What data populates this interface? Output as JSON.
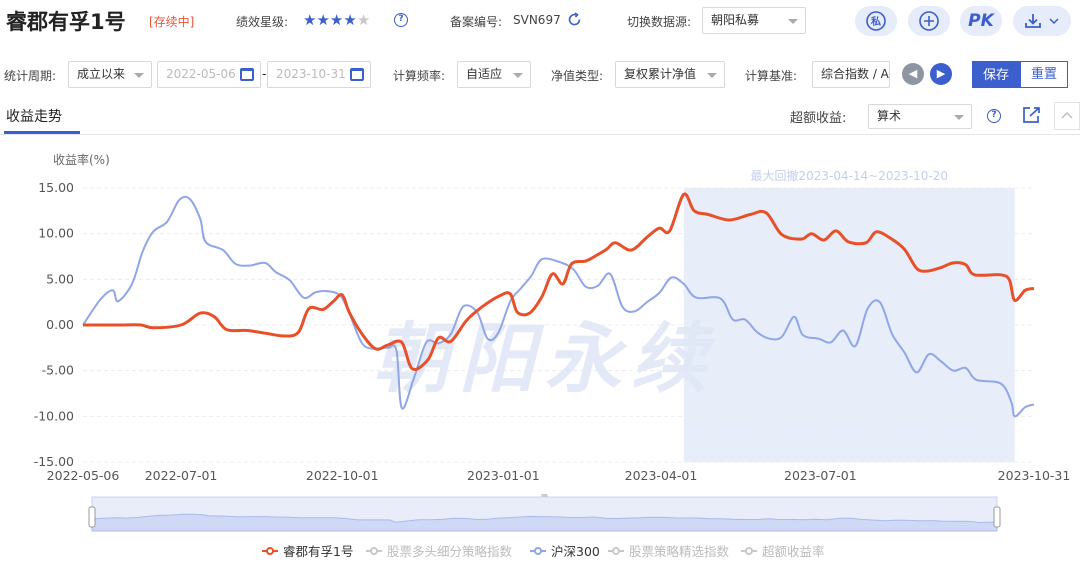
{
  "header": {
    "fund_name": "睿郡有孚1号",
    "status": "[存续中]",
    "rating_label": "绩效星级:",
    "rating_stars": 4,
    "rating_max": 5,
    "record_label": "备案编号:",
    "record_no": "SVN697",
    "source_label": "切换数据源:",
    "source_value": "朝阳私募",
    "action_private": "私",
    "action_add": "+",
    "action_pk": "PK"
  },
  "filters": {
    "period_label": "统计周期:",
    "period_value": "成立以来",
    "date_start_placeholder": "2022-05-06",
    "date_end_placeholder": "2023-10-31",
    "date_sep": "-",
    "freq_label": "计算频率:",
    "freq_value": "自适应",
    "nav_type_label": "净值类型:",
    "nav_type_value": "复权累计净值",
    "benchmark_label": "计算基准:",
    "benchmark_value": "综合指数 / A",
    "save_label": "保存",
    "reset_label": "重置"
  },
  "tabs": {
    "active": "收益走势",
    "excess_label": "超额收益:",
    "excess_value": "算术"
  },
  "colors": {
    "accent": "#3b5fcc",
    "fund_series": "#e8502a",
    "index_series": "#8fa6e8",
    "drawdown_band": "#e8eef9",
    "watermark": "#dfe6f6"
  },
  "chart_data": {
    "type": "line",
    "ylabel": "收益率(%)",
    "ylim": [
      -15,
      15
    ],
    "yticks": [
      "15.00",
      "10.00",
      "5.00",
      "0.00",
      "-5.00",
      "-10.00",
      "-15.00"
    ],
    "xticks": [
      "2022-05-06",
      "2022-07-01",
      "2022-10-01",
      "2023-01-01",
      "2023-04-01",
      "2023-07-01",
      "2023-10-31"
    ],
    "xlim": [
      "2022-05-06",
      "2023-10-31"
    ],
    "drawdown": {
      "label": "最大回撤2023-04-14~2023-10-20",
      "start": "2023-04-14",
      "end": "2023-10-20"
    },
    "watermark": "朝阳永续",
    "series": [
      {
        "name": "睿郡有孚1号",
        "color": "#e8502a",
        "points": [
          [
            "2022-05-06",
            0.0
          ],
          [
            "2022-05-27",
            0.0
          ],
          [
            "2022-06-08",
            0.0
          ],
          [
            "2022-06-15",
            -0.3
          ],
          [
            "2022-07-01",
            0.0
          ],
          [
            "2022-07-12",
            1.3
          ],
          [
            "2022-07-20",
            0.9
          ],
          [
            "2022-07-27",
            -0.5
          ],
          [
            "2022-08-08",
            -0.6
          ],
          [
            "2022-08-18",
            -0.9
          ],
          [
            "2022-08-29",
            -1.2
          ],
          [
            "2022-09-06",
            -0.8
          ],
          [
            "2022-09-12",
            1.8
          ],
          [
            "2022-09-20",
            1.7
          ],
          [
            "2022-09-26",
            2.6
          ],
          [
            "2022-10-01",
            3.3
          ],
          [
            "2022-10-05",
            1.4
          ],
          [
            "2022-10-12",
            -0.9
          ],
          [
            "2022-10-20",
            -2.6
          ],
          [
            "2022-10-27",
            -2.2
          ],
          [
            "2022-11-04",
            -1.9
          ],
          [
            "2022-11-10",
            -4.8
          ],
          [
            "2022-11-19",
            -3.8
          ],
          [
            "2022-11-25",
            -1.4
          ],
          [
            "2022-12-02",
            -1.8
          ],
          [
            "2022-12-11",
            0.5
          ],
          [
            "2022-12-20",
            2.0
          ],
          [
            "2022-12-30",
            3.2
          ],
          [
            "2023-01-05",
            3.4
          ],
          [
            "2023-01-09",
            1.4
          ],
          [
            "2023-01-16",
            1.3
          ],
          [
            "2023-01-23",
            3.1
          ],
          [
            "2023-01-29",
            5.6
          ],
          [
            "2023-02-04",
            4.5
          ],
          [
            "2023-02-09",
            6.7
          ],
          [
            "2023-02-17",
            7.0
          ],
          [
            "2023-02-23",
            7.6
          ],
          [
            "2023-03-01",
            8.3
          ],
          [
            "2023-03-06",
            9.0
          ],
          [
            "2023-03-15",
            8.2
          ],
          [
            "2023-03-24",
            9.6
          ],
          [
            "2023-03-31",
            10.6
          ],
          [
            "2023-04-06",
            10.3
          ],
          [
            "2023-04-14",
            14.3
          ],
          [
            "2023-04-20",
            12.5
          ],
          [
            "2023-04-28",
            12.1
          ],
          [
            "2023-05-10",
            11.5
          ],
          [
            "2023-05-22",
            12.1
          ],
          [
            "2023-05-31",
            12.3
          ],
          [
            "2023-06-09",
            9.9
          ],
          [
            "2023-06-20",
            9.4
          ],
          [
            "2023-06-26",
            10.0
          ],
          [
            "2023-07-03",
            9.3
          ],
          [
            "2023-07-10",
            10.3
          ],
          [
            "2023-07-17",
            9.1
          ],
          [
            "2023-07-27",
            9.0
          ],
          [
            "2023-08-02",
            10.2
          ],
          [
            "2023-08-10",
            9.5
          ],
          [
            "2023-08-18",
            8.3
          ],
          [
            "2023-08-25",
            6.2
          ],
          [
            "2023-08-31",
            5.9
          ],
          [
            "2023-09-08",
            6.3
          ],
          [
            "2023-09-15",
            6.8
          ],
          [
            "2023-09-22",
            6.6
          ],
          [
            "2023-09-27",
            5.5
          ],
          [
            "2023-10-12",
            5.5
          ],
          [
            "2023-10-17",
            4.9
          ],
          [
            "2023-10-20",
            2.7
          ],
          [
            "2023-10-26",
            3.8
          ],
          [
            "2023-10-31",
            4.0
          ]
        ]
      },
      {
        "name": "沪深300",
        "color": "#8fa6e8",
        "points": [
          [
            "2022-05-06",
            0.0
          ],
          [
            "2022-05-16",
            2.8
          ],
          [
            "2022-05-23",
            3.8
          ],
          [
            "2022-05-26",
            2.6
          ],
          [
            "2022-06-03",
            4.5
          ],
          [
            "2022-06-09",
            8.0
          ],
          [
            "2022-06-15",
            10.2
          ],
          [
            "2022-06-23",
            11.3
          ],
          [
            "2022-06-30",
            13.7
          ],
          [
            "2022-07-06",
            13.8
          ],
          [
            "2022-07-12",
            11.6
          ],
          [
            "2022-07-15",
            9.1
          ],
          [
            "2022-07-25",
            8.2
          ],
          [
            "2022-08-01",
            6.7
          ],
          [
            "2022-08-09",
            6.5
          ],
          [
            "2022-08-18",
            6.8
          ],
          [
            "2022-08-24",
            5.8
          ],
          [
            "2022-09-01",
            4.9
          ],
          [
            "2022-09-09",
            3.0
          ],
          [
            "2022-09-16",
            3.6
          ],
          [
            "2022-09-23",
            3.7
          ],
          [
            "2022-09-30",
            3.2
          ],
          [
            "2022-10-05",
            1.3
          ],
          [
            "2022-10-12",
            -1.9
          ],
          [
            "2022-10-18",
            -2.6
          ],
          [
            "2022-10-27",
            -2.5
          ],
          [
            "2022-11-01",
            -2.8
          ],
          [
            "2022-11-04",
            -9.1
          ],
          [
            "2022-11-11",
            -5.8
          ],
          [
            "2022-11-18",
            -1.9
          ],
          [
            "2022-11-25",
            -2.0
          ],
          [
            "2022-12-02",
            -1.0
          ],
          [
            "2022-12-09",
            2.0
          ],
          [
            "2022-12-17",
            1.4
          ],
          [
            "2022-12-23",
            -1.5
          ],
          [
            "2022-12-29",
            -0.9
          ],
          [
            "2023-01-05",
            2.6
          ],
          [
            "2023-01-11",
            4.0
          ],
          [
            "2023-01-17",
            5.4
          ],
          [
            "2023-01-23",
            7.2
          ],
          [
            "2023-02-02",
            6.9
          ],
          [
            "2023-02-10",
            6.1
          ],
          [
            "2023-02-17",
            4.2
          ],
          [
            "2023-02-24",
            4.3
          ],
          [
            "2023-03-03",
            5.6
          ],
          [
            "2023-03-10",
            2.0
          ],
          [
            "2023-03-17",
            1.5
          ],
          [
            "2023-03-24",
            2.5
          ],
          [
            "2023-03-31",
            3.5
          ],
          [
            "2023-04-07",
            5.2
          ],
          [
            "2023-04-14",
            4.5
          ],
          [
            "2023-04-21",
            3.0
          ],
          [
            "2023-05-05",
            2.9
          ],
          [
            "2023-05-12",
            0.6
          ],
          [
            "2023-05-19",
            0.6
          ],
          [
            "2023-05-26",
            -0.8
          ],
          [
            "2023-06-02",
            -1.5
          ],
          [
            "2023-06-09",
            -1.3
          ],
          [
            "2023-06-16",
            0.9
          ],
          [
            "2023-06-21",
            -1.1
          ],
          [
            "2023-06-30",
            -1.5
          ],
          [
            "2023-07-07",
            -1.9
          ],
          [
            "2023-07-14",
            -0.6
          ],
          [
            "2023-07-21",
            -2.3
          ],
          [
            "2023-07-28",
            1.8
          ],
          [
            "2023-08-04",
            2.5
          ],
          [
            "2023-08-11",
            -1.0
          ],
          [
            "2023-08-18",
            -3.0
          ],
          [
            "2023-08-25",
            -5.2
          ],
          [
            "2023-09-01",
            -3.2
          ],
          [
            "2023-09-08",
            -4.0
          ],
          [
            "2023-09-15",
            -5.0
          ],
          [
            "2023-09-22",
            -4.7
          ],
          [
            "2023-09-28",
            -6.0
          ],
          [
            "2023-10-12",
            -6.4
          ],
          [
            "2023-10-18",
            -8.4
          ],
          [
            "2023-10-20",
            -10.0
          ],
          [
            "2023-10-26",
            -9.0
          ],
          [
            "2023-10-31",
            -8.7
          ]
        ]
      }
    ],
    "legend": [
      {
        "name": "睿郡有孚1号",
        "active": true,
        "color": "#e8502a"
      },
      {
        "name": "股票多头细分策略指数",
        "active": false,
        "color": "#c8c8c8"
      },
      {
        "name": "沪深300",
        "active": true,
        "color": "#8fa6e8"
      },
      {
        "name": "股票策略精选指数",
        "active": false,
        "color": "#c8c8c8"
      },
      {
        "name": "超额收益率",
        "active": false,
        "color": "#c8c8c8"
      }
    ]
  }
}
